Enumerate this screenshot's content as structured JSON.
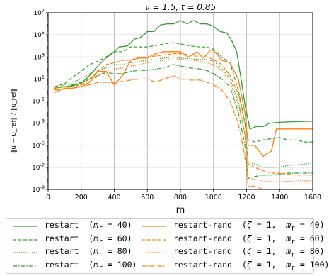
{
  "chart_data": {
    "type": "line",
    "title": "ν = 1.5, t = 0.85",
    "xlabel": "m",
    "ylabel": "‖û − u_ref‖ / ‖u_ref‖",
    "yscale": "log",
    "xlim": [
      0,
      1600
    ],
    "ylim": [
      1e-09,
      10000000.0
    ],
    "xticks": [
      "0",
      "200",
      "400",
      "600",
      "800",
      "1000",
      "1200",
      "1400",
      "1600"
    ],
    "yticks": [
      "10^7",
      "10^5",
      "10^3",
      "10^1",
      "10^-1",
      "10^-3",
      "10^-5",
      "10^-7",
      "10^-9"
    ],
    "grid": true,
    "legend_position": "bottom",
    "series": [
      {
        "name": "restart  (m_r = 40)",
        "label_html": "restart  (<i>m</i><sub>r</sub> = 40)",
        "color": "#2ca02c",
        "dash": "solid",
        "width": 1.3,
        "points": [
          [
            40,
            1.5
          ],
          [
            100,
            2
          ],
          [
            150,
            2.5
          ],
          [
            200,
            4
          ],
          [
            250,
            20
          ],
          [
            300,
            150
          ],
          [
            350,
            800
          ],
          [
            400,
            3000
          ],
          [
            430,
            8000
          ],
          [
            480,
            10000
          ],
          [
            520,
            40000
          ],
          [
            560,
            60000
          ],
          [
            600,
            200000
          ],
          [
            640,
            200000
          ],
          [
            680,
            800000
          ],
          [
            720,
            1000000
          ],
          [
            760,
            1000000
          ],
          [
            800,
            2000000
          ],
          [
            840,
            1000000
          ],
          [
            880,
            2000000
          ],
          [
            920,
            1000000
          ],
          [
            960,
            1000000
          ],
          [
            1000,
            600000
          ],
          [
            1040,
            200000
          ],
          [
            1080,
            150000
          ],
          [
            1110,
            30000
          ],
          [
            1140,
            3000
          ],
          [
            1170,
            5
          ],
          [
            1190,
            0.05
          ],
          [
            1220,
            0.0003
          ],
          [
            1260,
            0.0005
          ],
          [
            1300,
            0.0005
          ],
          [
            1340,
            0.001
          ],
          [
            1400,
            0.0012
          ],
          [
            1500,
            0.0014
          ],
          [
            1600,
            0.0015
          ]
        ]
      },
      {
        "name": "restart  (m_r = 60)",
        "label_html": "restart  (<i>m</i><sub>r</sub> = 60)",
        "color": "#2ca02c",
        "dash": "dashed",
        "width": 1.2,
        "points": [
          [
            40,
            2
          ],
          [
            100,
            4
          ],
          [
            150,
            15
          ],
          [
            200,
            50
          ],
          [
            250,
            200
          ],
          [
            300,
            400
          ],
          [
            350,
            1000
          ],
          [
            400,
            3000
          ],
          [
            450,
            3000
          ],
          [
            500,
            8000
          ],
          [
            550,
            8000
          ],
          [
            600,
            8000
          ],
          [
            700,
            15000
          ],
          [
            760,
            20000
          ],
          [
            800,
            15000
          ],
          [
            860,
            10000
          ],
          [
            920,
            8000
          ],
          [
            960,
            8000
          ],
          [
            1000,
            5000
          ],
          [
            1050,
            1000
          ],
          [
            1100,
            300
          ],
          [
            1150,
            1
          ],
          [
            1190,
            0.001
          ],
          [
            1210,
            3e-05
          ],
          [
            1250,
            2e-05
          ],
          [
            1300,
            3e-05
          ],
          [
            1350,
            4e-05
          ],
          [
            1400,
            5e-05
          ],
          [
            1450,
            3e-05
          ],
          [
            1500,
            3e-05
          ],
          [
            1550,
            2e-05
          ],
          [
            1600,
            2e-05
          ]
        ]
      },
      {
        "name": "restart  (m_r = 80)",
        "label_html": "restart  (<i>m</i><sub>r</sub> = 80)",
        "color": "#2ca02c",
        "dash": "dotted",
        "width": 1.3,
        "points": [
          [
            40,
            1.5
          ],
          [
            100,
            3
          ],
          [
            150,
            5
          ],
          [
            200,
            10
          ],
          [
            250,
            30
          ],
          [
            300,
            60
          ],
          [
            350,
            100
          ],
          [
            400,
            200
          ],
          [
            450,
            200
          ],
          [
            500,
            300
          ],
          [
            550,
            400
          ],
          [
            600,
            500
          ],
          [
            700,
            800
          ],
          [
            760,
            1000
          ],
          [
            800,
            800
          ],
          [
            860,
            700
          ],
          [
            920,
            600
          ],
          [
            960,
            600
          ],
          [
            1000,
            400
          ],
          [
            1050,
            100
          ],
          [
            1100,
            10
          ],
          [
            1150,
            0.1
          ],
          [
            1190,
            0.0001
          ],
          [
            1210,
            3e-07
          ],
          [
            1250,
            2e-07
          ],
          [
            1300,
            1e-07
          ],
          [
            1350,
            1e-07
          ],
          [
            1400,
            1e-07
          ],
          [
            1450,
            1.5e-07
          ],
          [
            1500,
            1.5e-07
          ],
          [
            1550,
            2e-07
          ],
          [
            1600,
            2.5e-07
          ]
        ]
      },
      {
        "name": "restart  (m_r = 100)",
        "label_html": "restart  (<i>m</i><sub>r</sub> = 100)",
        "color": "#2ca02c",
        "dash": "dashdot",
        "width": 1.2,
        "points": [
          [
            40,
            1.5
          ],
          [
            100,
            2
          ],
          [
            150,
            3
          ],
          [
            200,
            5
          ],
          [
            250,
            10
          ],
          [
            300,
            20
          ],
          [
            350,
            40
          ],
          [
            400,
            30
          ],
          [
            450,
            30
          ],
          [
            500,
            50
          ],
          [
            550,
            60
          ],
          [
            600,
            60
          ],
          [
            700,
            100
          ],
          [
            760,
            200
          ],
          [
            800,
            150
          ],
          [
            860,
            100
          ],
          [
            920,
            80
          ],
          [
            960,
            60
          ],
          [
            1000,
            30
          ],
          [
            1050,
            10
          ],
          [
            1100,
            2
          ],
          [
            1150,
            0.01
          ],
          [
            1190,
            1e-05
          ],
          [
            1210,
            1e-08
          ],
          [
            1250,
            1.5e-08
          ],
          [
            1300,
            2e-08
          ],
          [
            1350,
            2e-08
          ],
          [
            1400,
            2.5e-08
          ],
          [
            1450,
            3e-08
          ],
          [
            1500,
            3e-08
          ],
          [
            1550,
            3e-08
          ],
          [
            1600,
            3e-08
          ]
        ]
      },
      {
        "name": "restart-rand  (ζ = 1,  m_r = 40)",
        "label_html": "restart-rand  (<i>ζ</i> = 1,  <i>m</i><sub>r</sub> = 40)",
        "color": "#ff7f0e",
        "dash": "solid",
        "width": 1.3,
        "points": [
          [
            40,
            0.6
          ],
          [
            100,
            1.5
          ],
          [
            150,
            1.5
          ],
          [
            200,
            2
          ],
          [
            250,
            5
          ],
          [
            300,
            50
          ],
          [
            350,
            50
          ],
          [
            400,
            3
          ],
          [
            450,
            20
          ],
          [
            500,
            500
          ],
          [
            550,
            800
          ],
          [
            600,
            800
          ],
          [
            650,
            2000
          ],
          [
            700,
            3000
          ],
          [
            760,
            3000
          ],
          [
            800,
            3000
          ],
          [
            850,
            1000
          ],
          [
            900,
            3000
          ],
          [
            940,
            800
          ],
          [
            980,
            4000
          ],
          [
            1000,
            4000
          ],
          [
            1050,
            500
          ],
          [
            1100,
            300
          ],
          [
            1150,
            10
          ],
          [
            1190,
            0.01
          ],
          [
            1210,
            1e-05
          ],
          [
            1250,
            1e-05
          ],
          [
            1300,
            1e-06
          ],
          [
            1350,
            3e-06
          ],
          [
            1380,
            0.0003
          ],
          [
            1400,
            0.0003
          ],
          [
            1500,
            0.0003
          ],
          [
            1600,
            0.0003
          ]
        ]
      },
      {
        "name": "restart-rand  (ζ = 1,  m_r = 60)",
        "label_html": "restart-rand  (<i>ζ</i> = 1,  <i>m</i><sub>r</sub> = 60)",
        "color": "#ff7f0e",
        "dash": "dashed",
        "width": 1.2,
        "points": [
          [
            40,
            1.5
          ],
          [
            100,
            2
          ],
          [
            150,
            2
          ],
          [
            200,
            3
          ],
          [
            250,
            10
          ],
          [
            300,
            50
          ],
          [
            350,
            200
          ],
          [
            400,
            300
          ],
          [
            450,
            500
          ],
          [
            500,
            500
          ],
          [
            550,
            1000
          ],
          [
            600,
            1000
          ],
          [
            700,
            1500
          ],
          [
            760,
            2000
          ],
          [
            800,
            2000
          ],
          [
            860,
            1500
          ],
          [
            920,
            1000
          ],
          [
            960,
            1000
          ],
          [
            1000,
            600
          ],
          [
            1050,
            200
          ],
          [
            1100,
            20
          ],
          [
            1150,
            0.5
          ],
          [
            1190,
            0.001
          ],
          [
            1210,
            2e-07
          ],
          [
            1250,
            1e-07
          ],
          [
            1300,
            5e-08
          ],
          [
            1350,
            3e-08
          ],
          [
            1400,
            3e-08
          ],
          [
            1500,
            2e-08
          ],
          [
            1600,
            2e-08
          ]
        ]
      },
      {
        "name": "restart-rand  (ζ = 1,  m_r = 80)",
        "label_html": "restart-rand  (<i>ζ</i> = 1,  <i>m</i><sub>r</sub> = 80)",
        "color": "#ff7f0e",
        "dash": "dotted",
        "width": 1.3,
        "points": [
          [
            40,
            1.5
          ],
          [
            100,
            2
          ],
          [
            150,
            2
          ],
          [
            200,
            3
          ],
          [
            250,
            5
          ],
          [
            300,
            20
          ],
          [
            350,
            50
          ],
          [
            400,
            80
          ],
          [
            450,
            100
          ],
          [
            500,
            150
          ],
          [
            550,
            200
          ],
          [
            600,
            300
          ],
          [
            700,
            500
          ],
          [
            760,
            700
          ],
          [
            800,
            600
          ],
          [
            860,
            500
          ],
          [
            920,
            400
          ],
          [
            960,
            300
          ],
          [
            1000,
            200
          ],
          [
            1050,
            60
          ],
          [
            1100,
            5
          ],
          [
            1150,
            0.05
          ],
          [
            1190,
            0.0001
          ],
          [
            1210,
            1e-08
          ],
          [
            1250,
            8e-09
          ],
          [
            1300,
            6e-09
          ],
          [
            1350,
            5e-09
          ],
          [
            1400,
            5e-09
          ],
          [
            1500,
            6e-09
          ],
          [
            1600,
            6e-09
          ]
        ]
      },
      {
        "name": "restart-rand  (ζ = 1,  m_r = 100)",
        "label_html": "restart-rand  (<i>ζ</i> = 1,  <i>m</i><sub>r</sub> = 100)",
        "color": "#ff7f0e",
        "dash": "dashdot",
        "width": 1.2,
        "points": [
          [
            40,
            1
          ],
          [
            100,
            1.2
          ],
          [
            150,
            1.5
          ],
          [
            200,
            2
          ],
          [
            250,
            3
          ],
          [
            300,
            5
          ],
          [
            350,
            5
          ],
          [
            400,
            5
          ],
          [
            450,
            6
          ],
          [
            500,
            8
          ],
          [
            550,
            10
          ],
          [
            600,
            10
          ],
          [
            650,
            5
          ],
          [
            700,
            10
          ],
          [
            760,
            20
          ],
          [
            800,
            10
          ],
          [
            860,
            8
          ],
          [
            920,
            8
          ],
          [
            960,
            5
          ],
          [
            1000,
            3
          ],
          [
            1050,
            1
          ],
          [
            1100,
            0.1
          ],
          [
            1150,
            0.001
          ],
          [
            1190,
            1e-06
          ],
          [
            1210,
            2e-09
          ],
          [
            1250,
            2e-09
          ],
          [
            1300,
            1e-09
          ],
          [
            1400,
            1e-09
          ],
          [
            1500,
            1e-09
          ],
          [
            1600,
            1e-09
          ]
        ]
      }
    ]
  }
}
